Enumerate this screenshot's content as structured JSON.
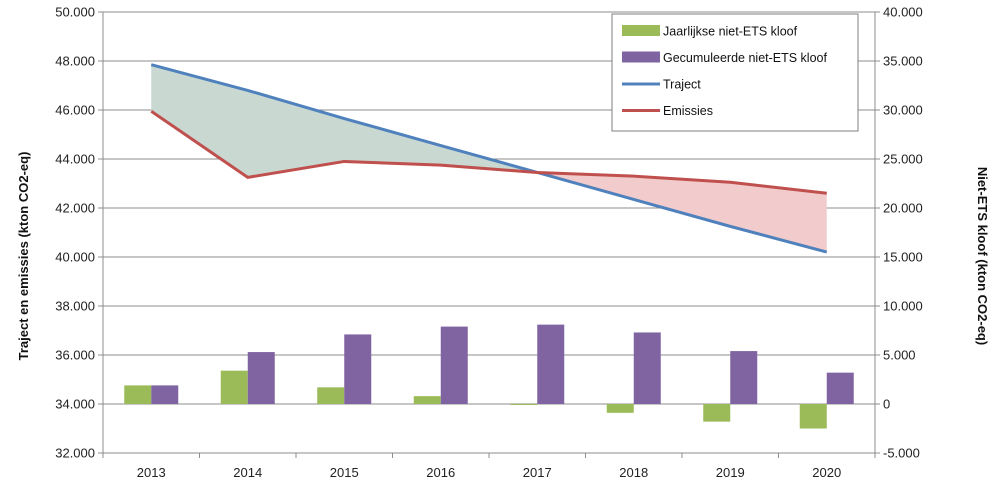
{
  "chart_data": {
    "type": "bar+line",
    "categories": [
      "2013",
      "2014",
      "2015",
      "2016",
      "2017",
      "2018",
      "2019",
      "2020"
    ],
    "left_axis": {
      "label": "Traject en emissies (kton CO2-eq)",
      "ylim": [
        32000,
        50000
      ],
      "ticks": [
        "32.000",
        "34.000",
        "36.000",
        "38.000",
        "40.000",
        "42.000",
        "44.000",
        "46.000",
        "48.000",
        "50.000"
      ]
    },
    "right_axis": {
      "label": "Niet-ETS kloof (kton CO2-eq)",
      "ylim": [
        -5000,
        40000
      ],
      "ticks": [
        "-5.000",
        "0",
        "5.000",
        "10.000",
        "15.000",
        "20.000",
        "25.000",
        "30.000",
        "35.000",
        "40.000"
      ]
    },
    "bar_series": [
      {
        "name": "Jaarlijkse niet-ETS kloof",
        "color": "#9bbb59",
        "axis": "right",
        "values": [
          1900,
          3400,
          1700,
          800,
          -100,
          -900,
          -1800,
          -2500
        ]
      },
      {
        "name": "Gecumuleerde niet-ETS kloof",
        "color": "#8064a2",
        "axis": "right",
        "values": [
          1900,
          5300,
          7100,
          7900,
          8100,
          7300,
          5400,
          3200
        ]
      }
    ],
    "line_series": [
      {
        "name": "Traject",
        "color": "#4f81bd",
        "axis": "left",
        "values": [
          47850,
          46800,
          45650,
          44550,
          43450,
          42350,
          41250,
          40200
        ]
      },
      {
        "name": "Emissies",
        "color": "#c0504d",
        "axis": "left",
        "values": [
          45950,
          43250,
          43900,
          43750,
          43450,
          43300,
          43050,
          42600
        ]
      }
    ],
    "fill_colors": {
      "surplus": "#c9d9d2",
      "deficit": "#f2cccc"
    },
    "grid": true,
    "legend_position": "top-right",
    "legend": [
      {
        "label": "Jaarlijkse niet-ETS kloof",
        "marker": "bar",
        "color": "#9bbb59"
      },
      {
        "label": "Gecumuleerde niet-ETS kloof",
        "marker": "bar",
        "color": "#8064a2"
      },
      {
        "label": "Traject",
        "marker": "line",
        "color": "#4f81bd"
      },
      {
        "label": "Emissies",
        "marker": "line",
        "color": "#c0504d"
      }
    ]
  }
}
